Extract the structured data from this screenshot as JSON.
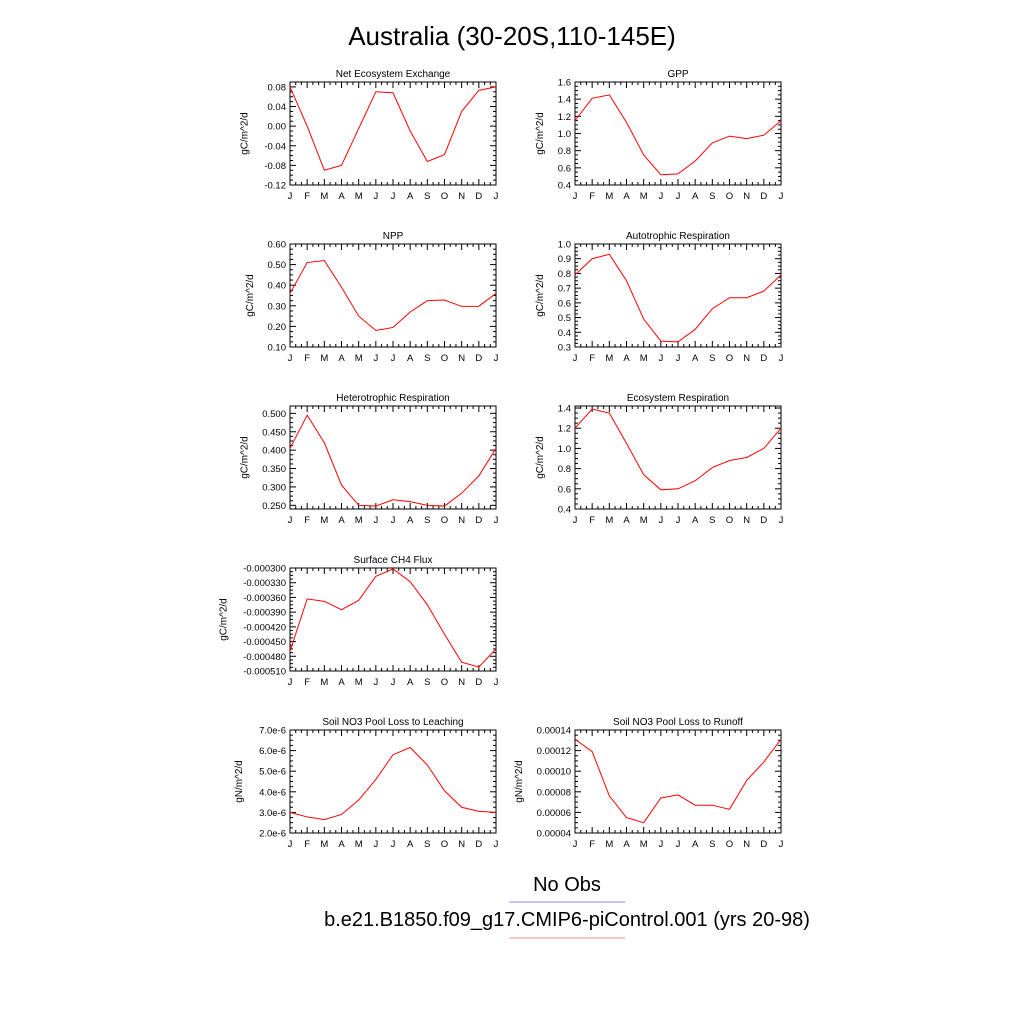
{
  "title": "Australia (30-20S,110-145E)",
  "month_labels": [
    "J",
    "F",
    "M",
    "A",
    "M",
    "J",
    "J",
    "A",
    "S",
    "O",
    "N",
    "D",
    "J"
  ],
  "series_color": "#ff0000",
  "obs_color": "#8888ff",
  "legend": {
    "obs_label": "No Obs",
    "model_label": "b.e21.B1850.f09_g17.CMIP6-piControl.001 (yrs 20-98)"
  },
  "chart_data": [
    {
      "type": "line",
      "title": "Net Ecosystem Exchange",
      "ylabel": "gC/m^2/d",
      "ylim": [
        -0.12,
        0.09
      ],
      "yticks": [
        -0.12,
        -0.08,
        -0.04,
        0.0,
        0.04,
        0.08
      ],
      "yticklabels": [
        "-0.12",
        "-0.08",
        "-0.04",
        "0.00",
        "0.04",
        "0.08"
      ],
      "x": [
        "J",
        "F",
        "M",
        "A",
        "M",
        "J",
        "J",
        "A",
        "S",
        "O",
        "N",
        "D",
        "J"
      ],
      "values": [
        0.08,
        0.0,
        -0.09,
        -0.08,
        -0.005,
        0.07,
        0.068,
        -0.01,
        -0.072,
        -0.058,
        0.03,
        0.073,
        0.08
      ]
    },
    {
      "type": "line",
      "title": "GPP",
      "ylabel": "gC/m^2/d",
      "ylim": [
        0.4,
        1.6
      ],
      "yticks": [
        0.4,
        0.6,
        0.8,
        1.0,
        1.2,
        1.4,
        1.6
      ],
      "yticklabels": [
        "0.4",
        "0.6",
        "0.8",
        "1.0",
        "1.2",
        "1.4",
        "1.6"
      ],
      "x": [
        "J",
        "F",
        "M",
        "A",
        "M",
        "J",
        "J",
        "A",
        "S",
        "O",
        "N",
        "D",
        "J"
      ],
      "values": [
        1.15,
        1.41,
        1.45,
        1.13,
        0.75,
        0.52,
        0.53,
        0.68,
        0.89,
        0.97,
        0.94,
        0.98,
        1.15
      ]
    },
    {
      "type": "line",
      "title": "NPP",
      "ylabel": "gC/m^2/d",
      "ylim": [
        0.1,
        0.6
      ],
      "yticks": [
        0.1,
        0.2,
        0.3,
        0.4,
        0.5,
        0.6
      ],
      "yticklabels": [
        "0.10",
        "0.20",
        "0.30",
        "0.40",
        "0.50",
        "0.60"
      ],
      "x": [
        "J",
        "F",
        "M",
        "A",
        "M",
        "J",
        "J",
        "A",
        "S",
        "O",
        "N",
        "D",
        "J"
      ],
      "values": [
        0.36,
        0.51,
        0.52,
        0.39,
        0.25,
        0.18,
        0.195,
        0.27,
        0.325,
        0.328,
        0.297,
        0.298,
        0.36
      ]
    },
    {
      "type": "line",
      "title": "Autotrophic Respiration",
      "ylabel": "gC/m^2/d",
      "ylim": [
        0.3,
        1.0
      ],
      "yticks": [
        0.3,
        0.4,
        0.5,
        0.6,
        0.7,
        0.8,
        0.9,
        1.0
      ],
      "yticklabels": [
        "0.3",
        "0.4",
        "0.5",
        "0.6",
        "0.7",
        "0.8",
        "0.9",
        "1.0"
      ],
      "x": [
        "J",
        "F",
        "M",
        "A",
        "M",
        "J",
        "J",
        "A",
        "S",
        "O",
        "N",
        "D",
        "J"
      ],
      "values": [
        0.79,
        0.9,
        0.93,
        0.75,
        0.49,
        0.34,
        0.335,
        0.42,
        0.56,
        0.635,
        0.635,
        0.68,
        0.79
      ]
    },
    {
      "type": "line",
      "title": "Heterotrophic Respiration",
      "ylabel": "gC/m^2/d",
      "ylim": [
        0.24,
        0.52
      ],
      "yticks": [
        0.25,
        0.3,
        0.35,
        0.4,
        0.45,
        0.5
      ],
      "yticklabels": [
        "0.250",
        "0.300",
        "0.350",
        "0.400",
        "0.450",
        "0.500"
      ],
      "x": [
        "J",
        "F",
        "M",
        "A",
        "M",
        "J",
        "J",
        "A",
        "S",
        "O",
        "N",
        "D",
        "J"
      ],
      "values": [
        0.405,
        0.495,
        0.42,
        0.305,
        0.25,
        0.248,
        0.265,
        0.26,
        0.25,
        0.248,
        0.283,
        0.33,
        0.405
      ]
    },
    {
      "type": "line",
      "title": "Ecosystem Respiration",
      "ylabel": "gC/m^2/d",
      "ylim": [
        0.4,
        1.42
      ],
      "yticks": [
        0.4,
        0.6,
        0.8,
        1.0,
        1.2,
        1.4
      ],
      "yticklabels": [
        "0.4",
        "0.6",
        "0.8",
        "1.0",
        "1.2",
        "1.4"
      ],
      "x": [
        "J",
        "F",
        "M",
        "A",
        "M",
        "J",
        "J",
        "A",
        "S",
        "O",
        "N",
        "D",
        "J"
      ],
      "values": [
        1.2,
        1.39,
        1.35,
        1.05,
        0.74,
        0.59,
        0.6,
        0.68,
        0.81,
        0.88,
        0.91,
        1.0,
        1.2
      ]
    },
    {
      "type": "line",
      "title": "Surface CH4 Flux",
      "ylabel": "gC/m^2/d",
      "ylim": [
        -0.00051,
        -0.0003
      ],
      "yticks": [
        -0.00051,
        -0.00048,
        -0.00045,
        -0.00042,
        -0.00039,
        -0.00036,
        -0.00033,
        -0.0003
      ],
      "yticklabels": [
        "-0.000510",
        "-0.000480",
        "-0.000450",
        "-0.000420",
        "-0.000390",
        "-0.000360",
        "-0.000330",
        "-0.000300"
      ],
      "x": [
        "J",
        "F",
        "M",
        "A",
        "M",
        "J",
        "J",
        "A",
        "S",
        "O",
        "N",
        "D",
        "J"
      ],
      "values": [
        -0.00047,
        -0.000363,
        -0.000368,
        -0.000385,
        -0.000366,
        -0.000317,
        -0.000302,
        -0.000328,
        -0.000375,
        -0.000435,
        -0.000492,
        -0.000502,
        -0.000465
      ]
    },
    {
      "type": "line",
      "title": "Soil NO3 Pool Loss to Leaching",
      "ylabel": "gN/m^2/d",
      "ylim": [
        2e-06,
        7e-06
      ],
      "yticks": [
        2e-06,
        3e-06,
        4e-06,
        5e-06,
        6e-06,
        7e-06
      ],
      "yticklabels": [
        "2.0e-6",
        "3.0e-6",
        "4.0e-6",
        "5.0e-6",
        "6.0e-6",
        "7.0e-6"
      ],
      "x": [
        "J",
        "F",
        "M",
        "A",
        "M",
        "J",
        "J",
        "A",
        "S",
        "O",
        "N",
        "D",
        "J"
      ],
      "values": [
        3e-06,
        2.78e-06,
        2.65e-06,
        2.9e-06,
        3.6e-06,
        4.6e-06,
        5.8e-06,
        6.15e-06,
        5.3e-06,
        4.05e-06,
        3.25e-06,
        3.05e-06,
        3e-06
      ]
    },
    {
      "type": "line",
      "title": "Soil NO3 Pool Loss to Runoff",
      "ylabel": "gN/m^2/d",
      "ylim": [
        4e-05,
        0.00014
      ],
      "yticks": [
        4e-05,
        6e-05,
        8e-05,
        0.0001,
        0.00012,
        0.00014
      ],
      "yticklabels": [
        "0.00004",
        "0.00006",
        "0.00008",
        "0.00010",
        "0.00012",
        "0.00014"
      ],
      "x": [
        "J",
        "F",
        "M",
        "A",
        "M",
        "J",
        "J",
        "A",
        "S",
        "O",
        "N",
        "D",
        "J"
      ],
      "values": [
        0.000131,
        0.000119,
        7.6e-05,
        5.5e-05,
        5e-05,
        7.4e-05,
        7.7e-05,
        6.7e-05,
        6.7e-05,
        6.3e-05,
        9.1e-05,
        0.000109,
        0.000131
      ]
    }
  ]
}
